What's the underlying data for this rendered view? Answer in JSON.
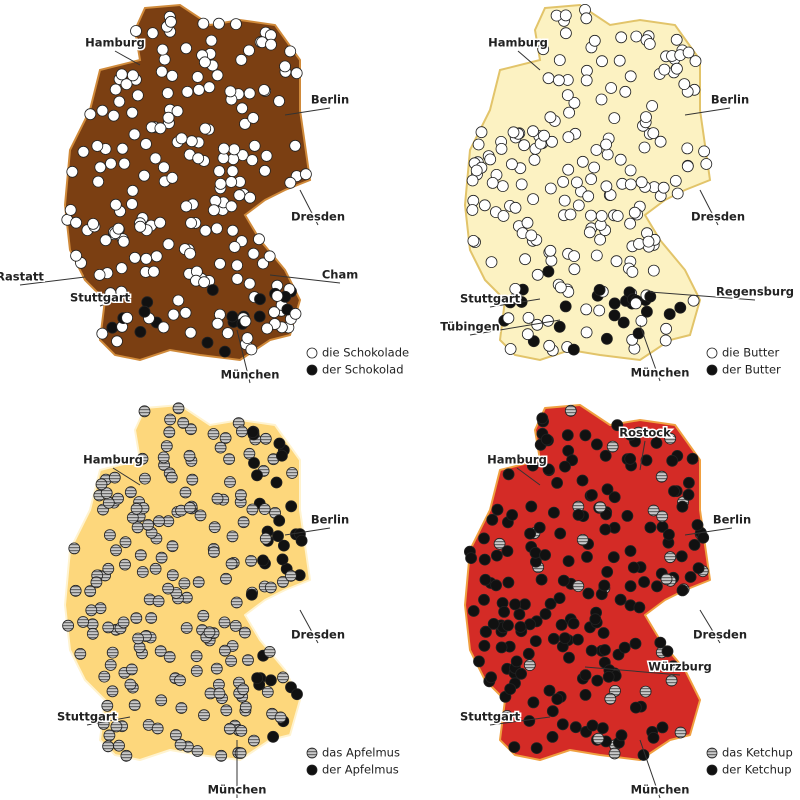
{
  "panels": [
    {
      "fill": "#7b3f12",
      "border": "#d08a3a",
      "labels": [
        "Hamburg",
        "Berlin",
        "Dresden",
        "Rastatt",
        "Cham",
        "Stuttgart",
        "München"
      ],
      "legend": [
        {
          "label": "die Schokolade",
          "color": "#ffffff"
        },
        {
          "label": "der Schokolad",
          "color": "#111111"
        }
      ]
    },
    {
      "fill": "#fcf2c2",
      "border": "#e2c46a",
      "labels": [
        "Hamburg",
        "Berlin",
        "Dresden",
        "Stuttgart",
        "Regensburg",
        "Tübingen",
        "München"
      ],
      "legend": [
        {
          "label": "die Butter",
          "color": "#ffffff"
        },
        {
          "label": "der Butter",
          "color": "#111111"
        }
      ]
    },
    {
      "fill": "#fdd77c",
      "border": "#fff3cf",
      "labels": [
        "Hamburg",
        "Berlin",
        "Dresden",
        "Stuttgart",
        "München"
      ],
      "legend": [
        {
          "label": "das Apfelmus",
          "color": "#9a9a9a"
        },
        {
          "label": "der Apfelmus",
          "color": "#111111"
        }
      ]
    },
    {
      "fill": "#d42b26",
      "border": "#f0a040",
      "labels": [
        "Rostock",
        "Hamburg",
        "Berlin",
        "Dresden",
        "Würzburg",
        "Stuttgart",
        "München"
      ],
      "legend": [
        {
          "label": "das Ketchup",
          "color": "#9a9a9a"
        },
        {
          "label": "der Ketchup",
          "color": "#111111"
        }
      ]
    }
  ]
}
